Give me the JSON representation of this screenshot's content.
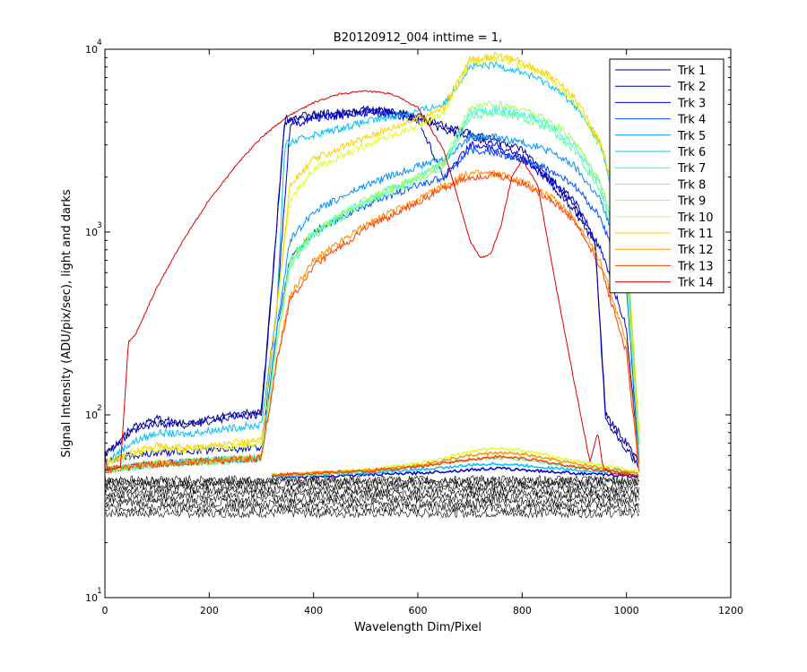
{
  "chart_data": {
    "type": "line",
    "title": "B20120912_004 inttime = 1,",
    "xlabel": "Wavelength Dim/Pixel",
    "ylabel": "Signal Intensity (ADU/pix/sec), light and darks",
    "xlim": [
      0,
      1200
    ],
    "ylim": [
      10,
      10000
    ],
    "yscale": "log",
    "grid": false,
    "legend_position": "top-right",
    "x_ticks": [
      0,
      200,
      400,
      600,
      800,
      1000,
      1200
    ],
    "x_tick_labels": [
      "0",
      "200",
      "400",
      "600",
      "800",
      "1000",
      "1200"
    ],
    "y_ticks": [
      10,
      100,
      1000,
      10000
    ],
    "y_tick_labels": [
      {
        "base": "10",
        "exp": "1"
      },
      {
        "base": "10",
        "exp": "2"
      },
      {
        "base": "10",
        "exp": "3"
      },
      {
        "base": "10",
        "exp": "4"
      }
    ],
    "series": [
      {
        "name": "Trk 1",
        "color": "#00008f",
        "x": [
          0,
          50,
          100,
          150,
          200,
          250,
          300,
          320,
          345,
          400,
          450,
          500,
          550,
          600,
          650,
          700,
          750,
          800,
          850,
          900,
          940,
          960,
          1000,
          1024
        ],
        "y": [
          60,
          85,
          95,
          90,
          95,
          100,
          105,
          500,
          4200,
          4400,
          4500,
          4700,
          4600,
          4300,
          3800,
          3500,
          3200,
          2800,
          2000,
          1400,
          900,
          100,
          70,
          55
        ]
      },
      {
        "name": "Trk 2",
        "color": "#0000ad",
        "x": [
          0,
          50,
          100,
          150,
          200,
          250,
          300,
          320,
          345,
          400,
          450,
          500,
          550,
          600,
          650,
          700,
          750,
          800,
          850,
          900,
          940,
          960,
          1000,
          1024
        ],
        "y": [
          60,
          80,
          90,
          88,
          92,
          98,
          100,
          480,
          4000,
          4300,
          4400,
          4600,
          4500,
          4200,
          3600,
          3300,
          3000,
          2600,
          1900,
          1300,
          850,
          95,
          65,
          52
        ]
      },
      {
        "name": "Trk 3",
        "color": "#0000d6",
        "x": [
          0,
          50,
          100,
          150,
          200,
          250,
          300,
          330,
          355,
          400,
          450,
          500,
          550,
          600,
          650,
          700,
          750,
          800,
          850,
          900,
          950,
          1000,
          1024
        ],
        "y": [
          55,
          60,
          62,
          63,
          64,
          65,
          66,
          400,
          3800,
          4200,
          4300,
          4500,
          4400,
          4100,
          2000,
          3000,
          2800,
          2500,
          2000,
          1500,
          800,
          300,
          55
        ]
      },
      {
        "name": "Trk 4",
        "color": "#0050ff",
        "x": [
          0,
          50,
          100,
          150,
          200,
          250,
          300,
          330,
          355,
          400,
          500,
          600,
          650,
          700,
          750,
          800,
          850,
          900,
          950,
          1000,
          1024
        ],
        "y": [
          50,
          52,
          54,
          55,
          56,
          57,
          58,
          300,
          700,
          1000,
          1400,
          1800,
          2000,
          2800,
          2700,
          2500,
          2200,
          1800,
          1200,
          500,
          55
        ]
      },
      {
        "name": "Trk 5",
        "color": "#0090ff",
        "x": [
          0,
          50,
          100,
          150,
          200,
          250,
          300,
          330,
          355,
          400,
          500,
          600,
          650,
          700,
          750,
          800,
          850,
          900,
          950,
          1000,
          1024
        ],
        "y": [
          50,
          52,
          54,
          55,
          56,
          57,
          58,
          300,
          900,
          1300,
          1800,
          2300,
          2500,
          3300,
          3300,
          3100,
          2800,
          2300,
          1500,
          600,
          60
        ]
      },
      {
        "name": "Trk 6",
        "color": "#00c0ff",
        "x": [
          0,
          50,
          100,
          150,
          200,
          250,
          300,
          330,
          345,
          400,
          500,
          600,
          650,
          700,
          750,
          800,
          850,
          900,
          950,
          1000,
          1024
        ],
        "y": [
          55,
          70,
          80,
          78,
          82,
          85,
          88,
          400,
          3000,
          3400,
          4000,
          4600,
          5000,
          8000,
          8200,
          7500,
          6500,
          5000,
          3000,
          800,
          70
        ]
      },
      {
        "name": "Trk 7",
        "color": "#20ffdf",
        "x": [
          0,
          50,
          100,
          150,
          200,
          250,
          300,
          330,
          355,
          400,
          500,
          600,
          650,
          700,
          750,
          800,
          850,
          900,
          950,
          1000,
          1024
        ],
        "y": [
          50,
          52,
          54,
          55,
          56,
          57,
          58,
          250,
          700,
          1000,
          1500,
          2000,
          2400,
          4500,
          4700,
          4400,
          3900,
          3000,
          1800,
          600,
          70
        ]
      },
      {
        "name": "Trk 8",
        "color": "#60ff9f",
        "x": [
          0,
          50,
          100,
          150,
          200,
          250,
          300,
          330,
          355,
          400,
          500,
          600,
          650,
          700,
          750,
          800,
          850,
          900,
          950,
          1000,
          1024
        ],
        "y": [
          50,
          52,
          54,
          55,
          56,
          57,
          58,
          250,
          650,
          950,
          1450,
          1900,
          2300,
          4300,
          4500,
          4200,
          3700,
          2800,
          1700,
          550,
          70
        ]
      },
      {
        "name": "Trk 9",
        "color": "#a0ff5f",
        "x": [
          0,
          50,
          100,
          150,
          200,
          250,
          300,
          330,
          355,
          400,
          500,
          600,
          650,
          700,
          750,
          800,
          850,
          900,
          950,
          1000,
          1024
        ],
        "y": [
          50,
          52,
          54,
          55,
          56,
          57,
          58,
          250,
          700,
          1000,
          1500,
          2000,
          2400,
          4800,
          5000,
          4700,
          4100,
          3200,
          1900,
          650,
          75
        ]
      },
      {
        "name": "Trk 10",
        "color": "#dfff20",
        "x": [
          0,
          50,
          100,
          150,
          200,
          250,
          300,
          330,
          355,
          400,
          500,
          600,
          650,
          700,
          750,
          800,
          850,
          900,
          950,
          1000,
          1024
        ],
        "y": [
          55,
          60,
          65,
          64,
          66,
          68,
          70,
          400,
          1500,
          2200,
          3000,
          3800,
          4500,
          8500,
          9000,
          8200,
          7000,
          5200,
          3000,
          900,
          80
        ]
      },
      {
        "name": "Trk 11",
        "color": "#ffcf00",
        "x": [
          0,
          50,
          100,
          150,
          200,
          250,
          300,
          330,
          355,
          400,
          500,
          600,
          650,
          700,
          750,
          800,
          850,
          900,
          950,
          1000,
          1024
        ],
        "y": [
          55,
          62,
          68,
          66,
          68,
          70,
          72,
          400,
          1800,
          2500,
          3300,
          4200,
          4800,
          8800,
          9200,
          8500,
          7300,
          5500,
          3100,
          950,
          80
        ]
      },
      {
        "name": "Trk 12",
        "color": "#ff8f00",
        "x": [
          0,
          50,
          100,
          150,
          200,
          250,
          300,
          330,
          355,
          400,
          500,
          600,
          650,
          700,
          750,
          800,
          850,
          900,
          950,
          1000,
          1024
        ],
        "y": [
          50,
          52,
          54,
          55,
          56,
          57,
          58,
          200,
          450,
          700,
          1100,
          1500,
          1800,
          2100,
          2100,
          1900,
          1600,
          1200,
          700,
          250,
          55
        ]
      },
      {
        "name": "Trk 13",
        "color": "#ff4000",
        "x": [
          0,
          50,
          100,
          150,
          200,
          250,
          300,
          330,
          355,
          400,
          500,
          600,
          650,
          700,
          750,
          800,
          850,
          900,
          950,
          1000,
          1024
        ],
        "y": [
          50,
          52,
          54,
          55,
          56,
          57,
          58,
          200,
          420,
          650,
          1050,
          1450,
          1750,
          2000,
          2050,
          1850,
          1550,
          1150,
          650,
          220,
          50
        ]
      },
      {
        "name": "Trk 14",
        "color": "#df0000",
        "x": [
          0,
          5,
          30,
          45,
          60,
          100,
          150,
          200,
          250,
          300,
          350,
          400,
          450,
          500,
          550,
          600,
          650,
          700,
          720,
          740,
          760,
          780,
          800,
          830,
          860,
          900,
          930,
          945,
          955,
          970,
          1000,
          1024
        ],
        "y": [
          60,
          50,
          52,
          250,
          280,
          500,
          900,
          1500,
          2300,
          3300,
          4300,
          5100,
          5700,
          5900,
          5700,
          4800,
          2800,
          900,
          720,
          760,
          1100,
          2000,
          2500,
          1800,
          600,
          150,
          55,
          80,
          52,
          48,
          47,
          46
        ]
      }
    ],
    "dark_bands": {
      "color": "#000000",
      "x_range": [
        0,
        1024
      ],
      "y_levels": [
        29,
        31,
        33,
        35,
        37,
        39,
        41,
        43,
        44
      ]
    },
    "light_floor_curves": {
      "x": [
        320,
        400,
        500,
        600,
        700,
        750,
        800,
        900,
        1024
      ],
      "y_levels": [
        {
          "color": "#0000d6",
          "y": [
            46,
            46,
            47,
            48,
            50,
            51,
            50,
            48,
            46
          ]
        },
        {
          "color": "#00c0ff",
          "y": [
            46,
            47,
            48,
            50,
            53,
            54,
            53,
            50,
            47
          ]
        },
        {
          "color": "#60ff9f",
          "y": [
            47,
            47,
            49,
            52,
            57,
            58,
            57,
            52,
            48
          ]
        },
        {
          "color": "#dfff20",
          "y": [
            47,
            48,
            50,
            54,
            63,
            66,
            64,
            56,
            49
          ]
        },
        {
          "color": "#ff8f00",
          "y": [
            47,
            48,
            50,
            53,
            60,
            62,
            61,
            54,
            48
          ]
        },
        {
          "color": "#ff4000",
          "y": [
            47,
            48,
            49,
            52,
            57,
            59,
            58,
            52,
            47
          ]
        }
      ]
    }
  }
}
